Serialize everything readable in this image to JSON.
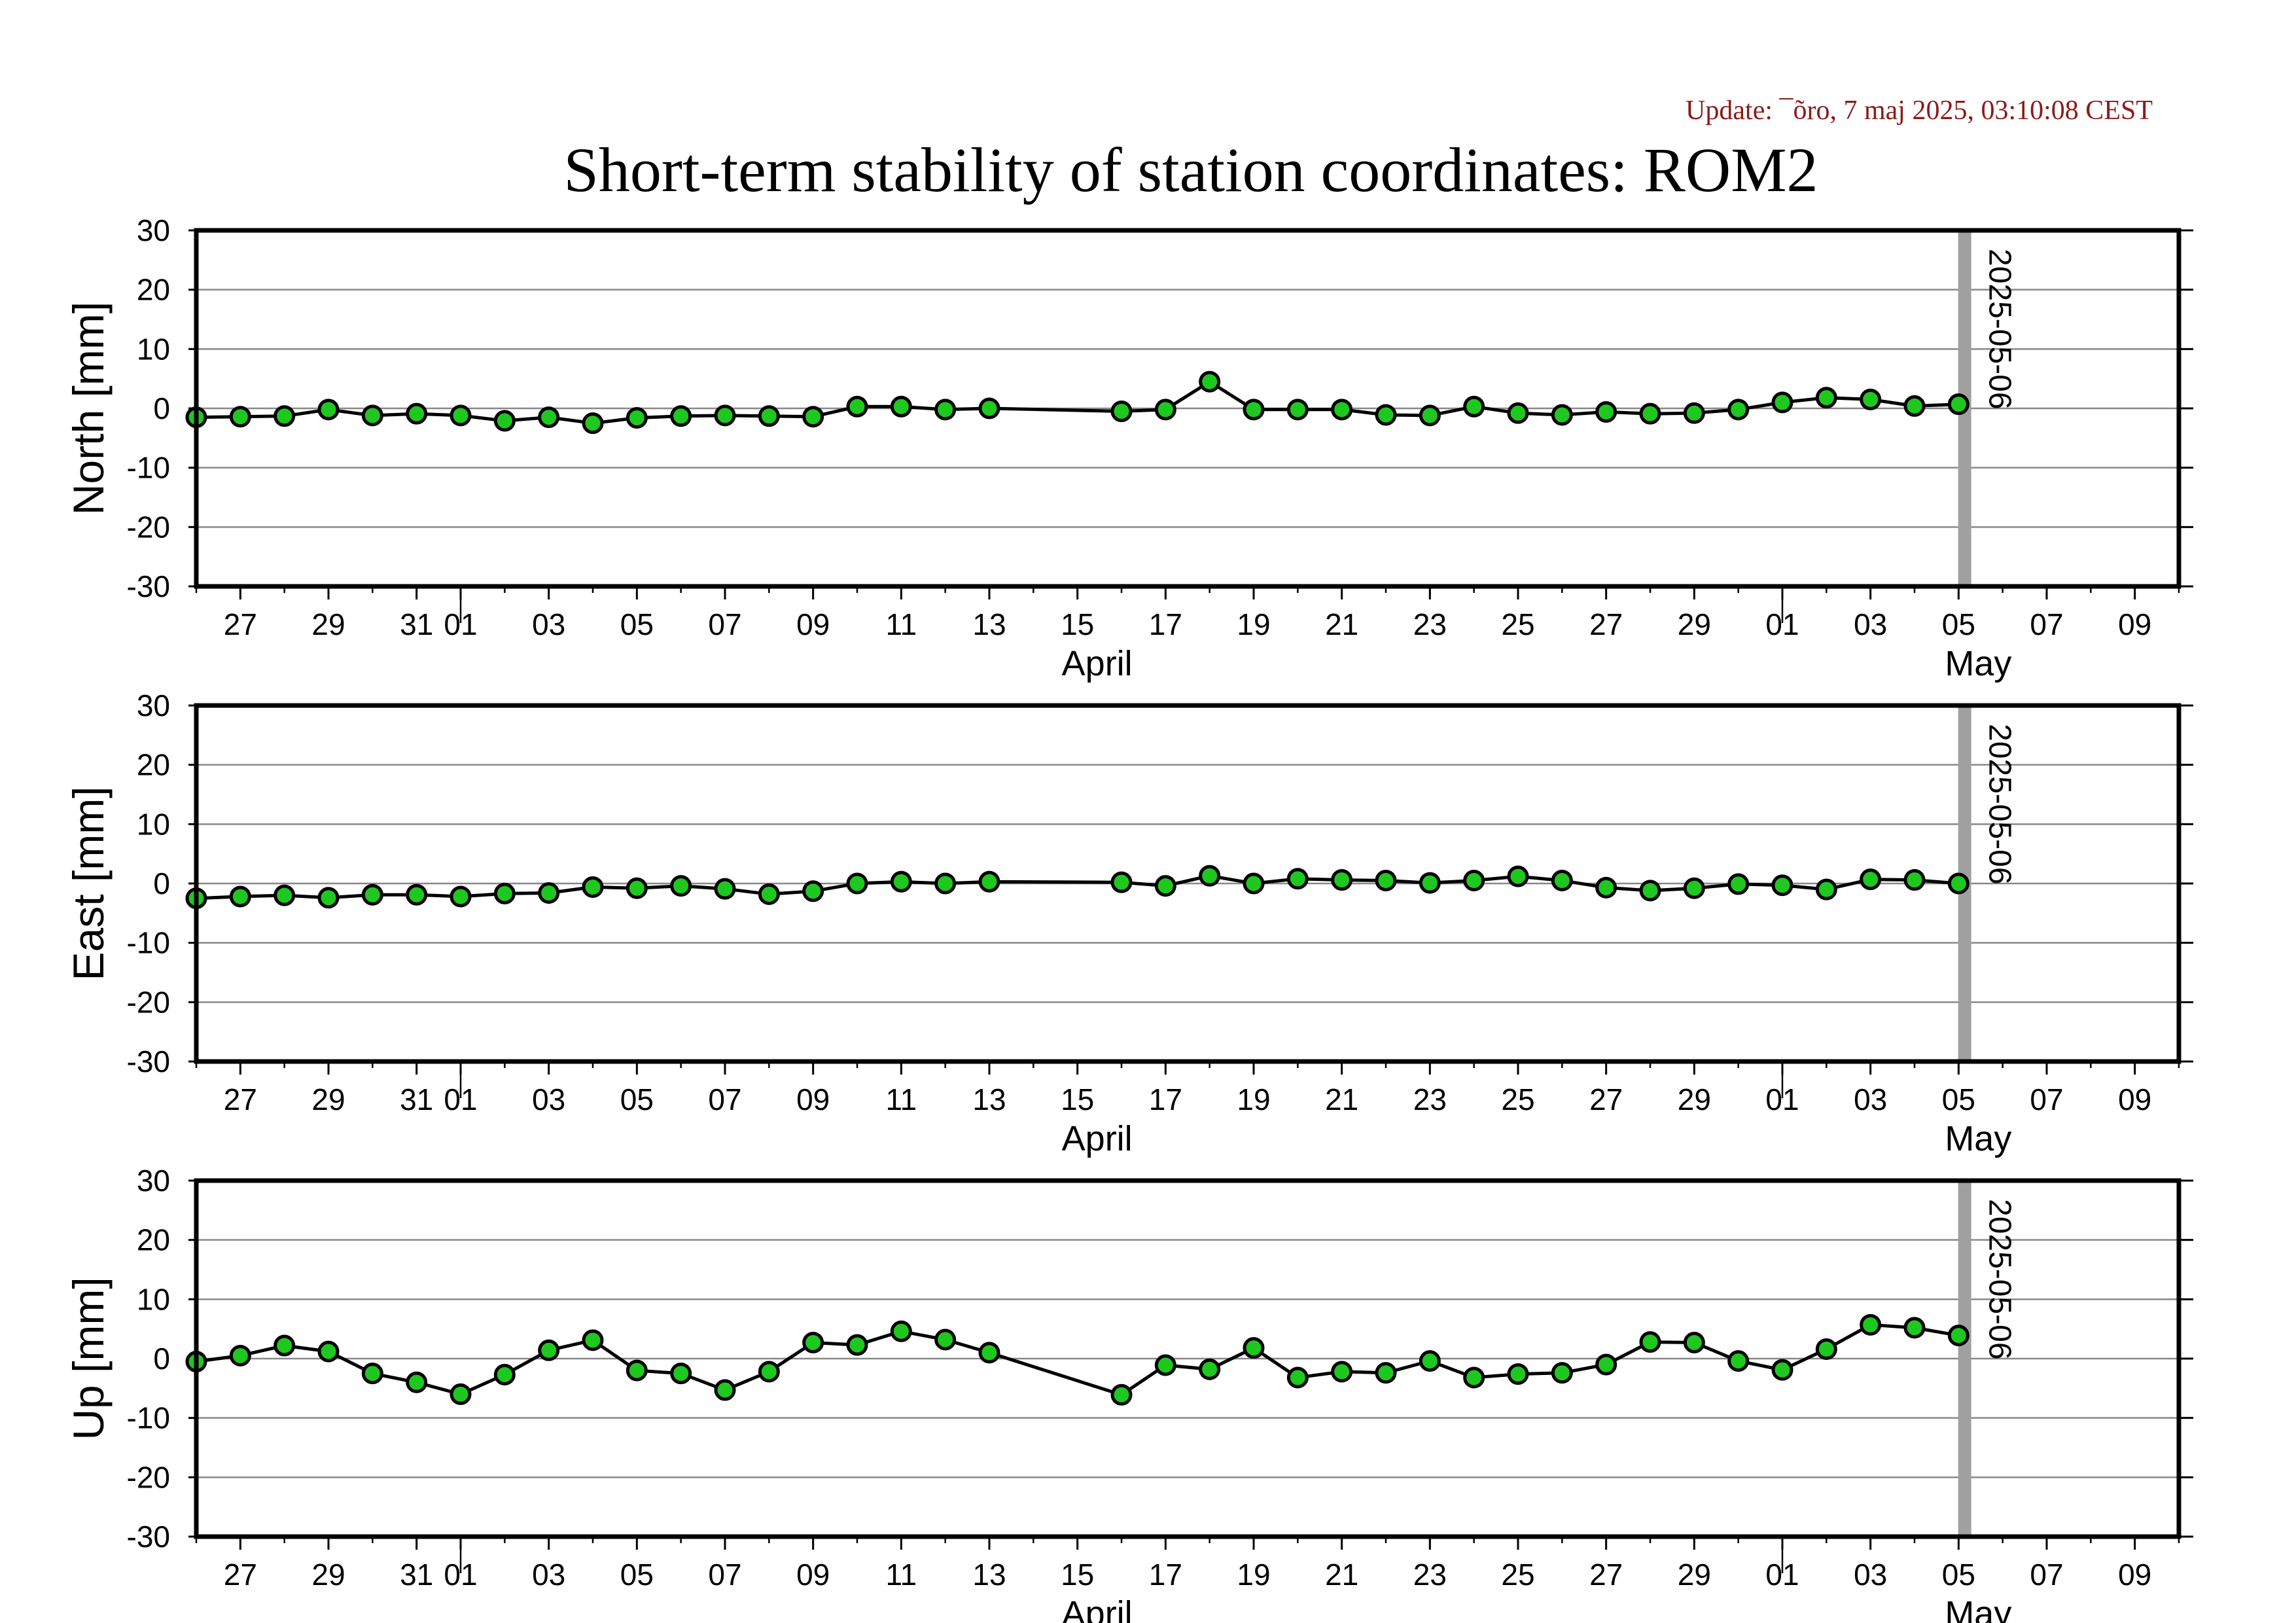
{
  "update_text": "Update: ¯õro, 7 maj 2025, 03:10:08 CEST",
  "title": "Short-term stability of station coordinates: ROM2",
  "colors": {
    "update": "#8b1a1a",
    "marker_fill": "#1ec81e",
    "marker_stroke": "#000000",
    "line": "#000000",
    "grid": "#888888",
    "frame": "#000000",
    "reference_line": "#a0a0a0"
  },
  "chart_data": [
    {
      "type": "line",
      "ylabel": "North [mm]",
      "ylim": [
        -30,
        30
      ],
      "yticks": [
        -30,
        -20,
        -10,
        0,
        10,
        20,
        30
      ],
      "xlim": [
        "2025-03-26",
        "2025-05-10"
      ],
      "x_tick_labels": [
        "27",
        "29",
        "31",
        "01",
        "03",
        "05",
        "07",
        "09",
        "11",
        "13",
        "15",
        "17",
        "19",
        "21",
        "23",
        "25",
        "27",
        "29",
        "01",
        "03",
        "05",
        "07",
        "09"
      ],
      "month_labels": [
        "April",
        "May"
      ],
      "grid": "horizontal",
      "reference_label": "2025-05-06",
      "x": [
        "2025-03-26",
        "2025-03-27",
        "2025-03-28",
        "2025-03-29",
        "2025-03-30",
        "2025-03-31",
        "2025-04-01",
        "2025-04-02",
        "2025-04-03",
        "2025-04-04",
        "2025-04-05",
        "2025-04-06",
        "2025-04-07",
        "2025-04-08",
        "2025-04-09",
        "2025-04-10",
        "2025-04-11",
        "2025-04-12",
        "2025-04-13",
        "2025-04-16",
        "2025-04-17",
        "2025-04-18",
        "2025-04-19",
        "2025-04-20",
        "2025-04-21",
        "2025-04-22",
        "2025-04-23",
        "2025-04-24",
        "2025-04-25",
        "2025-04-26",
        "2025-04-27",
        "2025-04-28",
        "2025-04-29",
        "2025-04-30",
        "2025-05-01",
        "2025-05-02",
        "2025-05-03",
        "2025-05-04",
        "2025-05-05"
      ],
      "values": [
        -1.5,
        -1.4,
        -1.3,
        -0.2,
        -1.2,
        -0.9,
        -1.2,
        -2.1,
        -1.5,
        -2.5,
        -1.6,
        -1.3,
        -1.2,
        -1.3,
        -1.4,
        0.3,
        0.3,
        -0.2,
        0.0,
        -0.5,
        -0.2,
        4.5,
        -0.2,
        -0.2,
        -0.2,
        -1.1,
        -1.2,
        0.3,
        -0.8,
        -1.1,
        -0.6,
        -0.9,
        -0.8,
        -0.2,
        1.0,
        1.8,
        1.5,
        0.4,
        0.7
      ]
    },
    {
      "type": "line",
      "ylabel": "East [mm]",
      "ylim": [
        -30,
        30
      ],
      "yticks": [
        -30,
        -20,
        -10,
        0,
        10,
        20,
        30
      ],
      "xlim": [
        "2025-03-26",
        "2025-05-10"
      ],
      "x_tick_labels": [
        "27",
        "29",
        "31",
        "01",
        "03",
        "05",
        "07",
        "09",
        "11",
        "13",
        "15",
        "17",
        "19",
        "21",
        "23",
        "25",
        "27",
        "29",
        "01",
        "03",
        "05",
        "07",
        "09"
      ],
      "month_labels": [
        "April",
        "May"
      ],
      "grid": "horizontal",
      "reference_label": "2025-05-06",
      "x": [
        "2025-03-26",
        "2025-03-27",
        "2025-03-28",
        "2025-03-29",
        "2025-03-30",
        "2025-03-31",
        "2025-04-01",
        "2025-04-02",
        "2025-04-03",
        "2025-04-04",
        "2025-04-05",
        "2025-04-06",
        "2025-04-07",
        "2025-04-08",
        "2025-04-09",
        "2025-04-10",
        "2025-04-11",
        "2025-04-12",
        "2025-04-13",
        "2025-04-16",
        "2025-04-17",
        "2025-04-18",
        "2025-04-19",
        "2025-04-20",
        "2025-04-21",
        "2025-04-22",
        "2025-04-23",
        "2025-04-24",
        "2025-04-25",
        "2025-04-26",
        "2025-04-27",
        "2025-04-28",
        "2025-04-29",
        "2025-04-30",
        "2025-05-01",
        "2025-05-02",
        "2025-05-03",
        "2025-05-04",
        "2025-05-05"
      ],
      "values": [
        -2.5,
        -2.2,
        -2.0,
        -2.4,
        -1.9,
        -1.9,
        -2.2,
        -1.7,
        -1.6,
        -0.6,
        -0.8,
        -0.4,
        -0.9,
        -1.8,
        -1.3,
        0.0,
        0.3,
        0.0,
        0.3,
        0.2,
        -0.4,
        1.3,
        0.0,
        0.8,
        0.6,
        0.5,
        0.1,
        0.5,
        1.2,
        0.5,
        -0.7,
        -1.2,
        -0.8,
        -0.1,
        -0.3,
        -1.0,
        0.7,
        0.6,
        0.0
      ]
    },
    {
      "type": "line",
      "ylabel": "Up [mm]",
      "ylim": [
        -30,
        30
      ],
      "yticks": [
        -30,
        -20,
        -10,
        0,
        10,
        20,
        30
      ],
      "xlim": [
        "2025-03-26",
        "2025-05-10"
      ],
      "x_tick_labels": [
        "27",
        "29",
        "31",
        "01",
        "03",
        "05",
        "07",
        "09",
        "11",
        "13",
        "15",
        "17",
        "19",
        "21",
        "23",
        "25",
        "27",
        "29",
        "01",
        "03",
        "05",
        "07",
        "09"
      ],
      "month_labels": [
        "April",
        "May"
      ],
      "grid": "horizontal",
      "reference_label": "2025-05-06",
      "x": [
        "2025-03-26",
        "2025-03-27",
        "2025-03-28",
        "2025-03-29",
        "2025-03-30",
        "2025-03-31",
        "2025-04-01",
        "2025-04-02",
        "2025-04-03",
        "2025-04-04",
        "2025-04-05",
        "2025-04-06",
        "2025-04-07",
        "2025-04-08",
        "2025-04-09",
        "2025-04-10",
        "2025-04-11",
        "2025-04-12",
        "2025-04-13",
        "2025-04-16",
        "2025-04-17",
        "2025-04-18",
        "2025-04-19",
        "2025-04-20",
        "2025-04-21",
        "2025-04-22",
        "2025-04-23",
        "2025-04-24",
        "2025-04-25",
        "2025-04-26",
        "2025-04-27",
        "2025-04-28",
        "2025-04-29",
        "2025-04-30",
        "2025-05-01",
        "2025-05-02",
        "2025-05-03",
        "2025-05-04",
        "2025-05-05"
      ],
      "values": [
        -0.5,
        0.5,
        2.2,
        1.2,
        -2.5,
        -4.0,
        -6.0,
        -2.7,
        1.4,
        3.1,
        -2.0,
        -2.5,
        -5.3,
        -2.2,
        2.7,
        2.3,
        4.6,
        3.2,
        1.0,
        -6.1,
        -1.1,
        -1.8,
        1.8,
        -3.2,
        -2.2,
        -2.4,
        -0.4,
        -3.2,
        -2.6,
        -2.4,
        -1.0,
        2.8,
        2.7,
        -0.4,
        -1.9,
        1.6,
        5.7,
        5.2,
        3.9
      ]
    }
  ]
}
